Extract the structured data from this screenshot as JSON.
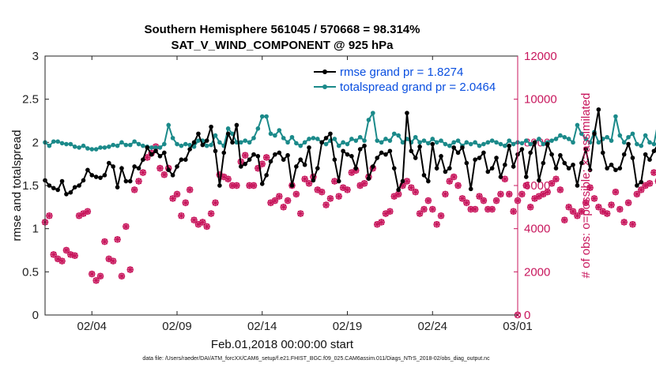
{
  "chart_data": {
    "type": "line",
    "title": "Southern Hemisphere 561045 / 570668 = 98.314%",
    "subtitle": "SAT_V_WIND_COMPONENT @ 925 hPa",
    "xlabel": "Feb.01,2018 00:00:00 start",
    "ylabel": "rmse and totalspread",
    "y2label": "# of obs: o=possible; ×=assimilated",
    "footnote": "data file: /Users/raeder/DAI/ATM_forcXX/CAM6_setup/f.e21.FHIST_BGC.f09_025.CAM6assim.011/Diags_NTrS_2018-02/obs_diag_output.nc",
    "x_tick_labels": [
      "02/04",
      "02/09",
      "02/14",
      "02/19",
      "02/24",
      "03/01"
    ],
    "x_tick_values": [
      4,
      9,
      14,
      19,
      24,
      29
    ],
    "xlim": [
      1.25,
      29
    ],
    "ylim": [
      0,
      3
    ],
    "y_ticks": [
      0,
      0.5,
      1,
      1.5,
      2,
      2.5,
      3
    ],
    "y_tick_labels": [
      "0",
      "0.5",
      "1",
      "1.5",
      "2",
      "2.5",
      "3"
    ],
    "y2lim": [
      0,
      12000
    ],
    "y2_ticks": [
      0,
      2000,
      4000,
      6000,
      8000,
      10000,
      12000
    ],
    "y2_tick_labels": [
      "0",
      "2000",
      "4000",
      "6000",
      "8000",
      "10000",
      "12000"
    ],
    "legend_position": "top-right",
    "x_start": 1.25,
    "x_step": 0.25,
    "series": [
      {
        "name": "rmse grand pr = 1.8274",
        "color": "#000000",
        "axis": "left",
        "values": [
          1.56,
          1.5,
          1.47,
          1.45,
          1.55,
          1.4,
          1.42,
          1.48,
          1.5,
          1.56,
          1.68,
          1.62,
          1.6,
          1.59,
          1.62,
          1.76,
          1.72,
          1.48,
          1.7,
          1.55,
          1.55,
          1.72,
          1.7,
          1.8,
          1.94,
          1.86,
          1.9,
          1.84,
          1.88,
          1.68,
          1.62,
          1.72,
          1.8,
          1.8,
          1.92,
          2.0,
          2.1,
          1.97,
          2.02,
          2.18,
          1.9,
          1.5,
          1.88,
          2.1,
          2.0,
          2.2,
          1.72,
          1.75,
          1.8,
          1.86,
          1.84,
          1.52,
          1.62,
          1.78,
          1.86,
          1.88,
          1.8,
          1.85,
          1.5,
          1.72,
          1.8,
          1.74,
          1.94,
          1.56,
          1.7,
          2.0,
          2.05,
          2.1,
          1.8,
          1.55,
          1.9,
          1.86,
          1.84,
          1.7,
          1.92,
          1.96,
          1.58,
          1.72,
          1.82,
          1.88,
          1.86,
          1.9,
          1.7,
          1.45,
          1.55,
          2.34,
          1.9,
          1.82,
          1.95,
          1.62,
          1.55,
          1.98,
          1.7,
          1.84,
          1.66,
          1.7,
          1.94,
          1.88,
          1.94,
          1.76,
          1.46,
          1.8,
          1.82,
          1.88,
          1.66,
          1.7,
          1.82,
          1.6,
          1.74,
          1.96,
          1.72,
          1.86,
          1.92,
          1.6,
          1.88,
          2.0,
          1.56,
          1.76,
          1.98,
          1.86,
          1.7,
          1.85,
          1.76,
          1.7,
          1.74,
          1.5,
          1.76,
          1.92,
          1.68,
          2.1,
          2.38,
          1.88,
          1.7,
          1.74,
          1.68,
          1.7,
          1.86,
          1.98,
          1.82,
          1.5,
          1.54,
          1.86,
          1.8,
          1.9,
          1.98
        ]
      },
      {
        "name": "totalspread grand pr = 2.0464",
        "color": "#1b8a8a",
        "axis": "left",
        "values": [
          2.0,
          1.96,
          2.01,
          2.01,
          1.99,
          1.98,
          1.98,
          1.95,
          1.94,
          1.96,
          1.93,
          1.92,
          1.92,
          1.94,
          1.94,
          1.95,
          1.97,
          1.96,
          2.0,
          1.97,
          1.97,
          2.01,
          1.98,
          1.96,
          1.95,
          1.94,
          1.94,
          1.94,
          1.98,
          2.2,
          2.05,
          1.98,
          1.96,
          1.98,
          1.97,
          1.95,
          2.02,
          2.02,
          1.96,
          1.97,
          2.08,
          2.0,
          1.96,
          2.16,
          2.1,
          2.0,
          2.0,
          2.02,
          2.0,
          2.05,
          2.16,
          2.3,
          2.3,
          2.1,
          2.08,
          2.14,
          2.05,
          2.0,
          2.06,
          1.99,
          1.96,
          2.0,
          2.04,
          2.05,
          2.04,
          2.0,
          1.98,
          2.02,
          2.04,
          1.96,
          2.0,
          1.98,
          2.04,
          2.02,
          2.06,
          2.02,
          2.26,
          2.34,
          2.02,
          2.0,
          2.04,
          2.02,
          2.1,
          2.08,
          2.0,
          2.04,
          2.0,
          2.06,
          2.0,
          2.02,
          1.99,
          2.04,
          2.0,
          2.02,
          1.98,
          1.96,
          2.0,
          2.02,
          1.96,
          2.0,
          1.98,
          2.0,
          1.96,
          1.98,
          2.0,
          2.02,
          2.0,
          1.98,
          1.96,
          2.02,
          1.98,
          2.0,
          1.99,
          2.02,
          1.98,
          2.0,
          2.04,
          1.98,
          2.0,
          2.02,
          2.04,
          2.08,
          2.06,
          2.04,
          2.0,
          2.2,
          2.1,
          2.04,
          2.0,
          2.12,
          2.0,
          2.04,
          2.06,
          2.02,
          2.3,
          2.08,
          2.0,
          2.06,
          2.1,
          1.98,
          1.96,
          2.08,
          2.0,
          1.98,
          2.24,
          2.1,
          2.08
        ]
      },
      {
        "name": "obs possible",
        "color": "#c8175d",
        "axis": "right",
        "marker": "o",
        "values": [
          4300,
          4600,
          2800,
          2600,
          2500,
          3000,
          2800,
          2750,
          4600,
          4700,
          4800,
          1900,
          1600,
          1800,
          3400,
          2600,
          2500,
          3500,
          1800,
          4100,
          2100,
          5800,
          6200,
          6600,
          7300,
          7500,
          7800,
          6800,
          6500,
          6800,
          5400,
          5600,
          4600,
          5200,
          5800,
          4400,
          4200,
          4300,
          4100,
          4700,
          5200,
          6500,
          6400,
          6300,
          6000,
          6000,
          7100,
          7400,
          6000,
          6000,
          6800,
          7000,
          7300,
          5200,
          5300,
          5500,
          5000,
          5300,
          6000,
          5600,
          4700,
          6300,
          6100,
          6400,
          5800,
          5700,
          5100,
          5400,
          6200,
          5500,
          5900,
          5800,
          6600,
          6700,
          6000,
          6100,
          6400,
          6800,
          4200,
          4300,
          4700,
          4800,
          5500,
          5600,
          6000,
          6200,
          5900,
          5700,
          4700,
          4900,
          5300,
          4900,
          4200,
          4600,
          5600,
          6200,
          6400,
          6000,
          5400,
          5200,
          4900,
          4900,
          5500,
          5300,
          4900,
          4900,
          5300,
          5600,
          6300,
          5600,
          4800,
          5300,
          5600,
          6000,
          5000,
          5400,
          5500,
          5600,
          5700,
          6100,
          6300,
          5800,
          4400,
          5000,
          4800,
          4600,
          4800,
          5200,
          5900,
          5400,
          5000,
          4800,
          4700,
          5100,
          5700,
          4900,
          4300,
          5200,
          4200,
          5600,
          5800,
          6000,
          6100,
          6600,
          6200,
          6200,
          5900,
          4700,
          4600,
          4500
        ]
      },
      {
        "name": "obs assimilated",
        "color": "#c8175d",
        "axis": "right",
        "marker": "x",
        "values": [
          4300,
          4600,
          2800,
          2600,
          2500,
          3000,
          2800,
          2750,
          4600,
          4700,
          4800,
          1900,
          1600,
          1800,
          3400,
          2600,
          2500,
          3500,
          1800,
          4100,
          2100,
          5800,
          6200,
          6600,
          7300,
          7500,
          7800,
          6800,
          6500,
          6800,
          5400,
          5600,
          4600,
          5200,
          5800,
          4400,
          4200,
          4300,
          4100,
          4700,
          5200,
          6500,
          6400,
          6300,
          6000,
          6000,
          7100,
          7400,
          6000,
          6000,
          6800,
          7000,
          7300,
          5200,
          5300,
          5500,
          5000,
          5300,
          6000,
          5600,
          4700,
          6300,
          6100,
          6400,
          5800,
          5700,
          5100,
          5400,
          6200,
          5500,
          5900,
          5800,
          6600,
          6700,
          6000,
          6100,
          6400,
          6800,
          4200,
          4300,
          4700,
          4800,
          5500,
          5600,
          6000,
          6200,
          5900,
          5700,
          4700,
          4900,
          5300,
          4900,
          4200,
          4600,
          5600,
          6200,
          6400,
          6000,
          5400,
          5200,
          4900,
          4900,
          5500,
          5300,
          4900,
          4900,
          5300,
          5600,
          6300,
          5600,
          4800,
          5300,
          5600,
          6000,
          5000,
          5400,
          5500,
          5600,
          5700,
          6100,
          6300,
          5800,
          4400,
          5000,
          4800,
          4600,
          4800,
          5200,
          5900,
          5400,
          5000,
          4800,
          4700,
          5100,
          5700,
          4900,
          4300,
          5200,
          4200,
          5600,
          5800,
          6000,
          6100,
          6600,
          6200,
          6200,
          5900,
          4700,
          4600,
          4500
        ]
      }
    ],
    "extra_points": [
      {
        "series": "obs possible",
        "x": 29,
        "value": 0
      }
    ]
  }
}
